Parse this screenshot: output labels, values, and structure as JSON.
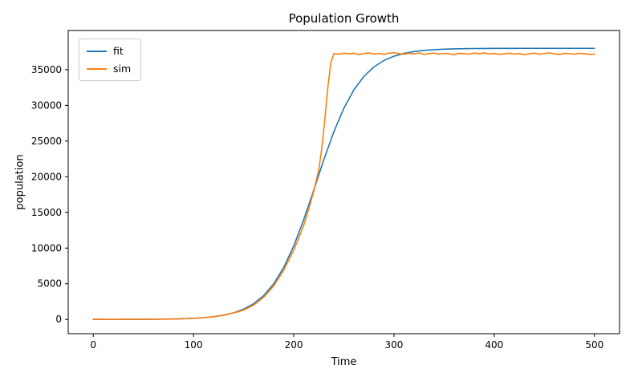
{
  "chart_data": {
    "type": "line",
    "title": "Population Growth",
    "xlabel": "Time",
    "ylabel": "population",
    "xlim": [
      -25,
      525
    ],
    "ylim": [
      -2000,
      40500
    ],
    "xticks": [
      0,
      100,
      200,
      300,
      400,
      500
    ],
    "yticks": [
      0,
      5000,
      10000,
      15000,
      20000,
      25000,
      30000,
      35000
    ],
    "grid": false,
    "legend_position": "upper left",
    "series": [
      {
        "name": "fit",
        "color": "#1f77b4",
        "x": [
          0,
          10,
          20,
          30,
          40,
          50,
          60,
          70,
          80,
          90,
          100,
          110,
          120,
          130,
          140,
          150,
          160,
          170,
          180,
          190,
          200,
          210,
          220,
          230,
          240,
          250,
          260,
          270,
          280,
          290,
          300,
          310,
          320,
          330,
          340,
          350,
          360,
          370,
          380,
          390,
          400,
          410,
          420,
          430,
          440,
          450,
          460,
          470,
          480,
          490,
          500
        ],
        "y": [
          2,
          3,
          4,
          7,
          11,
          17,
          26,
          41,
          64,
          100,
          156,
          244,
          382,
          596,
          926,
          1433,
          2199,
          3338,
          4988,
          7280,
          10295,
          13990,
          18147,
          22383,
          26300,
          29600,
          32179,
          34071,
          35398,
          36298,
          36897,
          37289,
          37543,
          37708,
          37813,
          37881,
          37924,
          37951,
          37969,
          37980,
          37987,
          37992,
          37995,
          37997,
          37998,
          37999,
          37999,
          37999,
          38000,
          38000,
          38000
        ]
      },
      {
        "name": "sim",
        "color": "#ff7f0e",
        "x": [
          0,
          10,
          20,
          30,
          40,
          50,
          60,
          70,
          80,
          90,
          100,
          110,
          120,
          130,
          140,
          150,
          160,
          170,
          180,
          190,
          200,
          210,
          215,
          220,
          225,
          228,
          231,
          234,
          237,
          240,
          245,
          250,
          255,
          260,
          265,
          270,
          275,
          280,
          285,
          290,
          295,
          300,
          305,
          310,
          315,
          320,
          325,
          330,
          335,
          340,
          345,
          350,
          355,
          360,
          365,
          370,
          375,
          380,
          385,
          390,
          395,
          400,
          405,
          410,
          415,
          420,
          425,
          430,
          435,
          440,
          445,
          450,
          455,
          460,
          465,
          470,
          475,
          480,
          485,
          490,
          495,
          500
        ],
        "y": [
          20,
          15,
          10,
          20,
          15,
          25,
          30,
          45,
          60,
          95,
          150,
          240,
          380,
          590,
          900,
          1300,
          2000,
          3100,
          4700,
          6900,
          9700,
          13200,
          15500,
          18000,
          21000,
          24000,
          28000,
          32500,
          36000,
          37250,
          37180,
          37320,
          37230,
          37300,
          37120,
          37280,
          37350,
          37200,
          37280,
          37150,
          37320,
          37380,
          37250,
          37180,
          37300,
          37220,
          37350,
          37140,
          37260,
          37330,
          37190,
          37280,
          37230,
          37120,
          37300,
          37250,
          37180,
          37330,
          37260,
          37350,
          37200,
          37280,
          37150,
          37230,
          37320,
          37190,
          37280,
          37100,
          37250,
          37320,
          37180,
          37280,
          37350,
          37220,
          37150,
          37300,
          37240,
          37180,
          37310,
          37230,
          37150,
          37200
        ]
      }
    ]
  }
}
